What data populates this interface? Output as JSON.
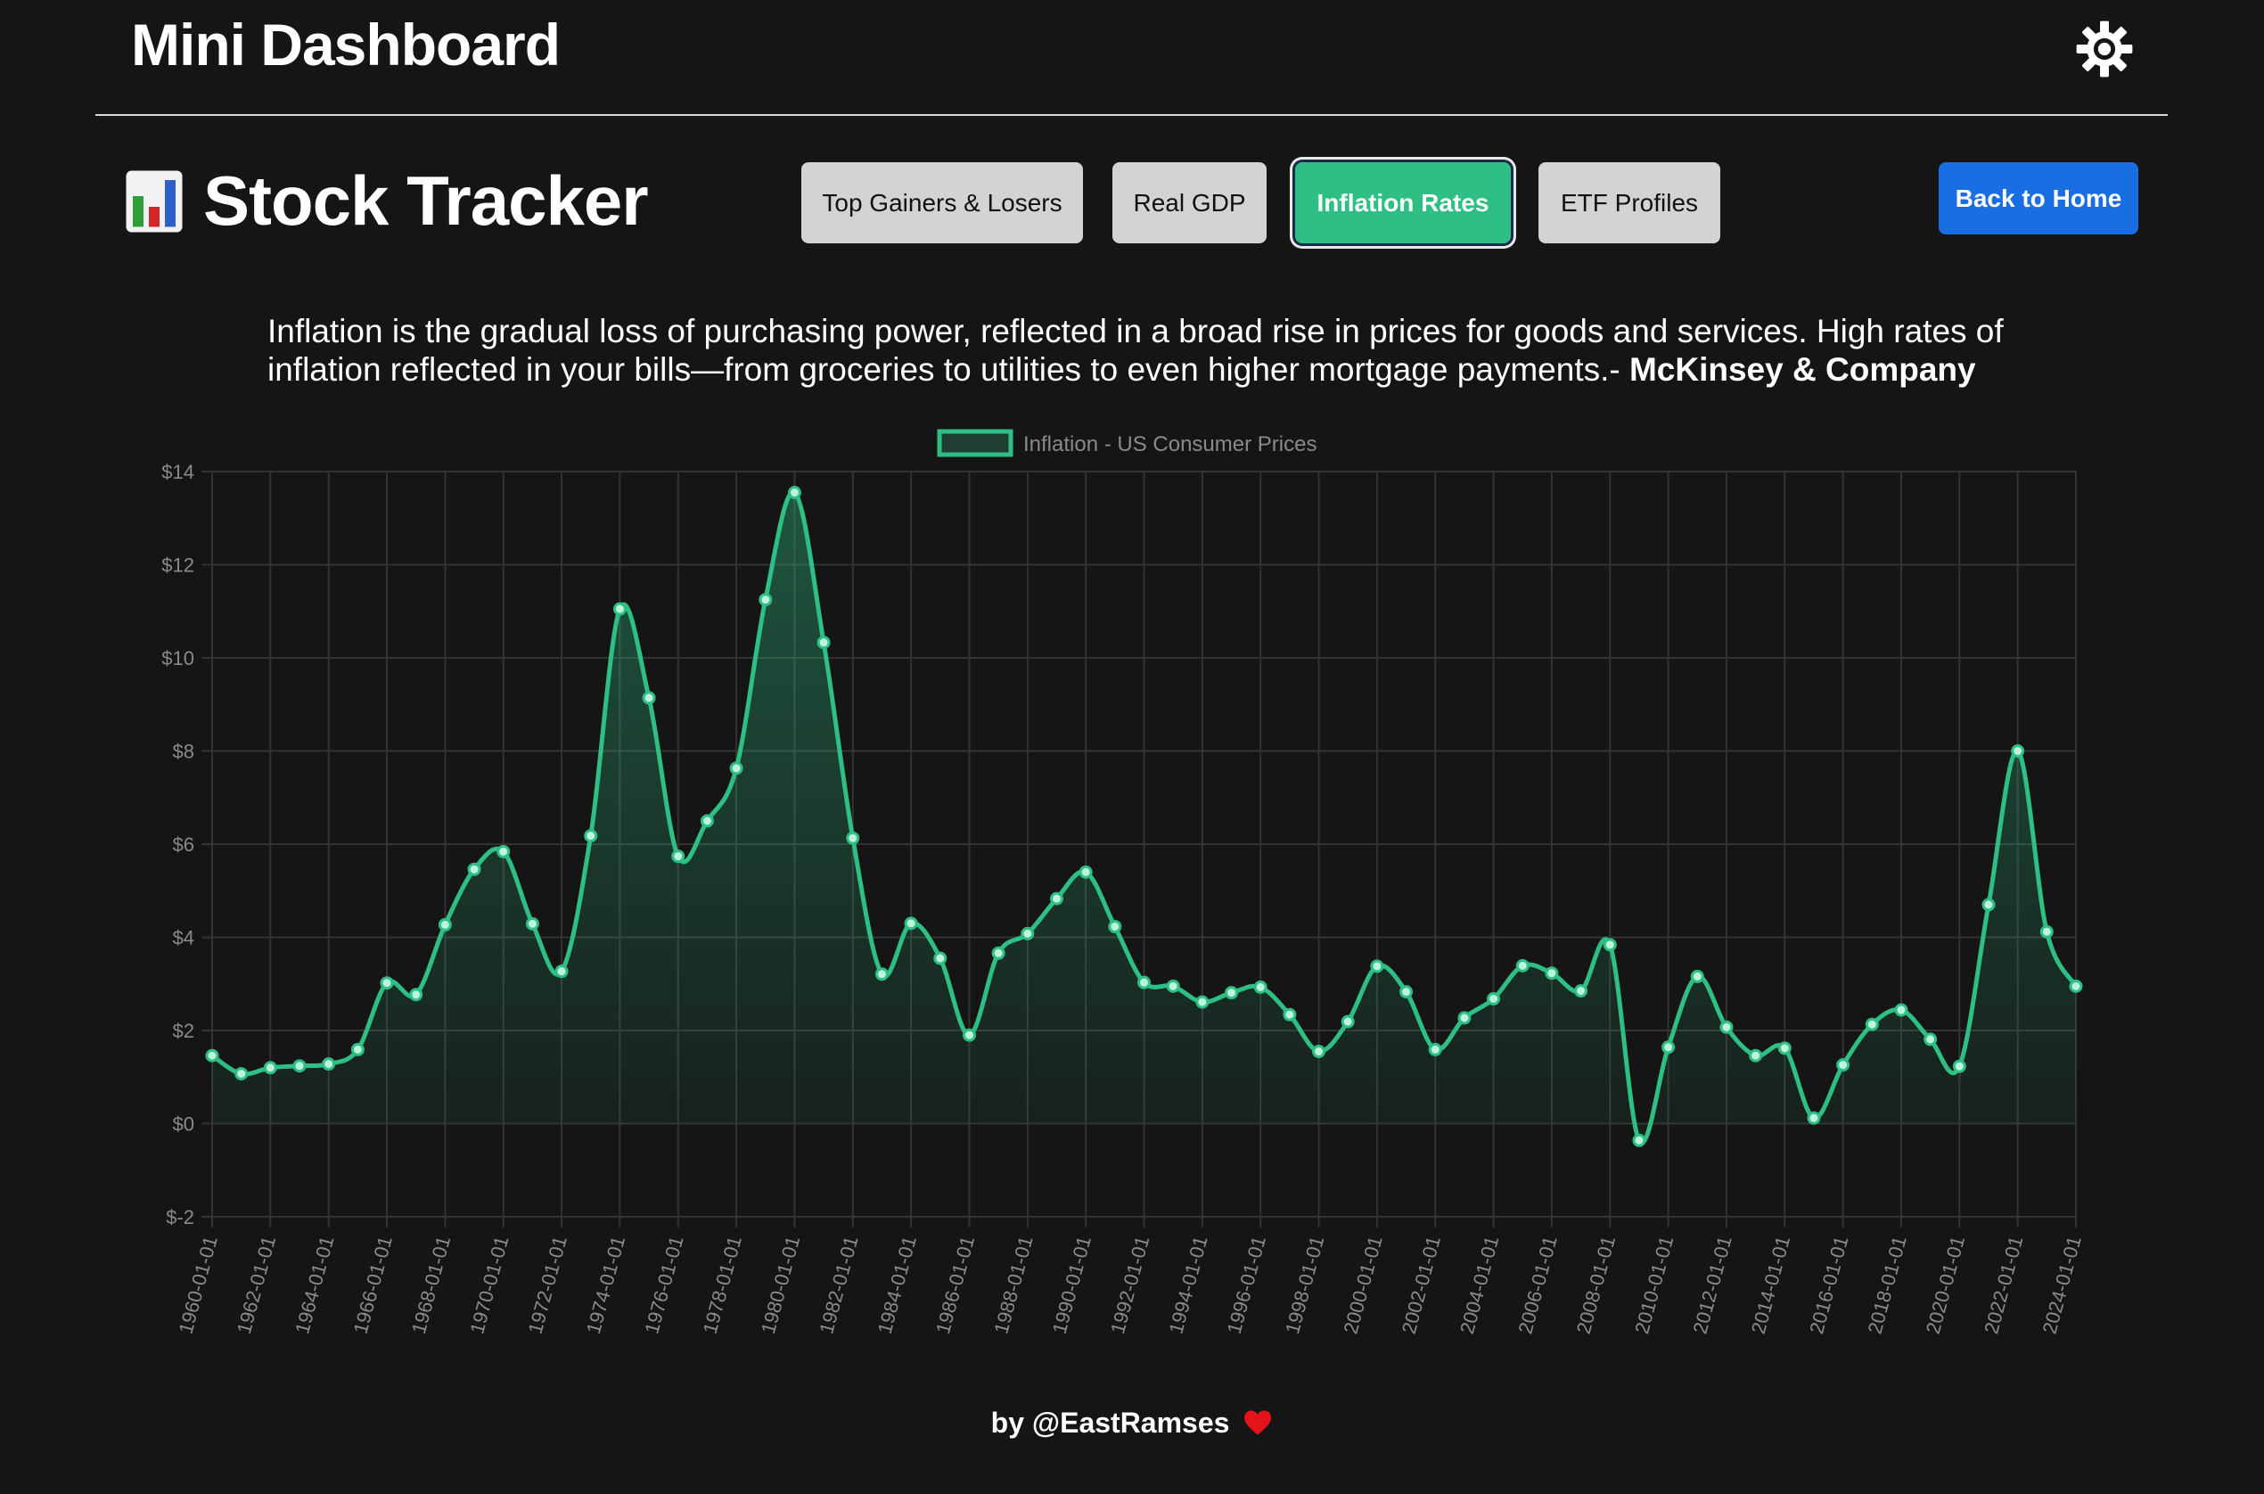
{
  "header": {
    "title": "Mini Dashboard",
    "theme_icon": "gear-icon"
  },
  "section": {
    "emoji": "bar-chart-icon",
    "title": "Stock Tracker"
  },
  "tabs": [
    {
      "label": "Top Gainers & Losers",
      "active": false
    },
    {
      "label": "Real GDP",
      "active": false
    },
    {
      "label": "Inflation Rates",
      "active": true
    },
    {
      "label": "ETF Profiles",
      "active": false
    }
  ],
  "back_button": {
    "label": "Back to Home"
  },
  "quote": {
    "text": "Inflation is the gradual loss of purchasing power, reflected in a broad rise in prices for goods and services. High rates of inflation reflected in your bills—from groceries to utilities to even higher mortgage payments.- ",
    "source": "McKinsey & Company"
  },
  "chart_data": {
    "type": "line",
    "area_fill": true,
    "legend": {
      "label": "Inflation - US Consumer Prices",
      "placement": "top-center"
    },
    "color": "#2ebf85",
    "y_tick_prefix": "$",
    "ylim": [
      -2,
      14
    ],
    "y_ticks": [
      -2,
      0,
      2,
      4,
      6,
      8,
      10,
      12,
      14
    ],
    "y_tick_labels": [
      "$-2",
      "$0",
      "$2",
      "$4",
      "$6",
      "$8",
      "$10",
      "$12",
      "$14"
    ],
    "grid": true,
    "x_tick_labels": [
      "1960-01-01",
      "1962-01-01",
      "1964-01-01",
      "1966-01-01",
      "1968-01-01",
      "1970-01-01",
      "1972-01-01",
      "1974-01-01",
      "1976-01-01",
      "1978-01-01",
      "1980-01-01",
      "1982-01-01",
      "1984-01-01",
      "1986-01-01",
      "1988-01-01",
      "1990-01-01",
      "1992-01-01",
      "1994-01-01",
      "1996-01-01",
      "1998-01-01",
      "2000-01-01",
      "2002-01-01",
      "2004-01-01",
      "2006-01-01",
      "2008-01-01",
      "2010-01-01",
      "2012-01-01",
      "2014-01-01",
      "2016-01-01",
      "2018-01-01",
      "2020-01-01",
      "2022-01-01",
      "2024-01-01"
    ],
    "x": [
      "1960-01-01",
      "1961-01-01",
      "1962-01-01",
      "1963-01-01",
      "1964-01-01",
      "1965-01-01",
      "1966-01-01",
      "1967-01-01",
      "1968-01-01",
      "1969-01-01",
      "1970-01-01",
      "1971-01-01",
      "1972-01-01",
      "1973-01-01",
      "1974-01-01",
      "1975-01-01",
      "1976-01-01",
      "1977-01-01",
      "1978-01-01",
      "1979-01-01",
      "1980-01-01",
      "1981-01-01",
      "1982-01-01",
      "1983-01-01",
      "1984-01-01",
      "1985-01-01",
      "1986-01-01",
      "1987-01-01",
      "1988-01-01",
      "1989-01-01",
      "1990-01-01",
      "1991-01-01",
      "1992-01-01",
      "1993-01-01",
      "1994-01-01",
      "1995-01-01",
      "1996-01-01",
      "1997-01-01",
      "1998-01-01",
      "1999-01-01",
      "2000-01-01",
      "2001-01-01",
      "2002-01-01",
      "2003-01-01",
      "2004-01-01",
      "2005-01-01",
      "2006-01-01",
      "2007-01-01",
      "2008-01-01",
      "2009-01-01",
      "2010-01-01",
      "2011-01-01",
      "2012-01-01",
      "2013-01-01",
      "2014-01-01",
      "2015-01-01",
      "2016-01-01",
      "2017-01-01",
      "2018-01-01",
      "2019-01-01",
      "2020-01-01",
      "2021-01-01",
      "2022-01-01",
      "2023-01-01",
      "2024-01-01"
    ],
    "values": [
      1.46,
      1.07,
      1.2,
      1.24,
      1.28,
      1.59,
      3.02,
      2.77,
      4.27,
      5.46,
      5.84,
      4.29,
      3.27,
      6.18,
      11.05,
      9.14,
      5.74,
      6.5,
      7.63,
      11.25,
      13.55,
      10.33,
      6.13,
      3.21,
      4.3,
      3.55,
      1.9,
      3.66,
      4.08,
      4.83,
      5.4,
      4.23,
      3.03,
      2.95,
      2.61,
      2.81,
      2.93,
      2.34,
      1.55,
      2.19,
      3.38,
      2.83,
      1.59,
      2.27,
      2.68,
      3.39,
      3.23,
      2.85,
      3.84,
      -0.36,
      1.64,
      3.16,
      2.07,
      1.46,
      1.62,
      0.12,
      1.26,
      2.13,
      2.44,
      1.81,
      1.23,
      4.7,
      8.0,
      4.12,
      2.95
    ]
  },
  "footer": {
    "text": "by @EastRamses"
  }
}
